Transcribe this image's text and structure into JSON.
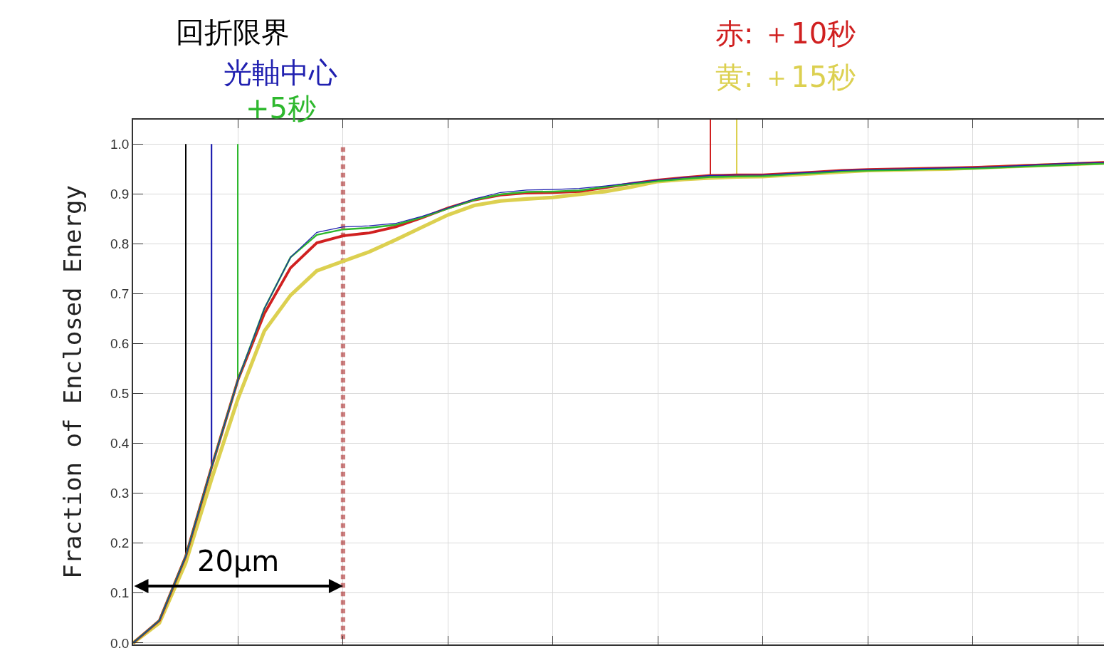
{
  "chart_data": {
    "type": "line",
    "ylabel": "Fraction of Enclosed Energy",
    "categories": [
      null,
      null,
      null,
      null,
      null,
      null,
      null,
      null,
      null,
      null,
      null,
      null,
      null,
      null,
      null,
      null,
      null,
      null,
      null,
      null,
      null,
      null,
      null,
      null,
      null,
      null,
      null,
      null,
      null,
      null,
      null,
      null,
      null,
      null,
      null,
      null,
      null,
      null
    ],
    "series": [
      {
        "name": "回折限界",
        "type": "bar",
        "color": "#000000",
        "values": [
          null,
          null,
          0.827,
          null,
          null,
          null,
          null,
          null,
          null,
          null,
          null,
          null,
          null,
          null,
          null,
          null,
          null,
          null,
          null,
          null,
          null,
          null,
          null,
          null,
          null,
          null,
          null,
          null,
          null,
          null,
          null,
          null,
          null,
          null,
          null,
          null,
          null,
          null
        ],
        "base": [
          null,
          null,
          0.173,
          null,
          null,
          null,
          null,
          null,
          null,
          null,
          null,
          null,
          null,
          null,
          null,
          null,
          null,
          null,
          null,
          null,
          null,
          null,
          null,
          null,
          null,
          null,
          null,
          null,
          null,
          null,
          null,
          null,
          null,
          null,
          null,
          null,
          null,
          null
        ]
      },
      {
        "type": "bar",
        "color": "#2020b0",
        "values": [
          null,
          null,
          null,
          0.646,
          null,
          null,
          null,
          null,
          null,
          null,
          null,
          null,
          null,
          null,
          null,
          null,
          null,
          null,
          null,
          null,
          null,
          null,
          null,
          null,
          null,
          null,
          null,
          null,
          null,
          null,
          null,
          null,
          null,
          null,
          null,
          null,
          null,
          null
        ],
        "base": [
          null,
          null,
          null,
          0.354,
          null,
          null,
          null,
          null,
          null,
          null,
          null,
          null,
          null,
          null,
          null,
          null,
          null,
          null,
          null,
          null,
          null,
          null,
          null,
          null,
          null,
          null,
          null,
          null,
          null,
          null,
          null,
          null,
          null,
          null,
          null,
          null,
          null,
          null
        ]
      },
      {
        "type": "bar",
        "color": "#2eb82e",
        "values": [
          null,
          null,
          null,
          null,
          0.472,
          null,
          null,
          null,
          null,
          null,
          null,
          null,
          null,
          null,
          null,
          null,
          null,
          null,
          null,
          null,
          null,
          null,
          null,
          null,
          null,
          null,
          null,
          null,
          null,
          null,
          null,
          null,
          null,
          null,
          null,
          null,
          null,
          null
        ],
        "base": [
          null,
          null,
          null,
          null,
          0.528,
          null,
          null,
          null,
          null,
          null,
          null,
          null,
          null,
          null,
          null,
          null,
          null,
          null,
          null,
          null,
          null,
          null,
          null,
          null,
          null,
          null,
          null,
          null,
          null,
          null,
          null,
          null,
          null,
          null,
          null,
          null,
          null,
          null
        ]
      },
      {
        "type": "bar",
        "color": "#d02020",
        "values": [
          null,
          null,
          null,
          null,
          null,
          null,
          null,
          null,
          null,
          null,
          null,
          null,
          null,
          null,
          null,
          null,
          null,
          null,
          null,
          null,
          null,
          null,
          0.112,
          null,
          null,
          null,
          null,
          null,
          null,
          null,
          null,
          null,
          null,
          null,
          null,
          null,
          null,
          null
        ],
        "base": [
          null,
          null,
          null,
          null,
          null,
          null,
          null,
          null,
          null,
          null,
          null,
          null,
          null,
          null,
          null,
          null,
          null,
          null,
          null,
          null,
          null,
          null,
          0.937,
          null,
          null,
          null,
          null,
          null,
          null,
          null,
          null,
          null,
          null,
          null,
          null,
          null,
          null,
          null
        ]
      },
      {
        "type": "bar",
        "color": "#dcd050",
        "values": [
          null,
          null,
          null,
          null,
          null,
          null,
          null,
          null,
          null,
          null,
          null,
          null,
          null,
          null,
          null,
          null,
          null,
          null,
          null,
          null,
          null,
          null,
          null,
          0.112,
          null,
          null,
          null,
          null,
          null,
          null,
          null,
          null,
          null,
          null,
          null,
          null,
          null,
          null
        ],
        "base": [
          null,
          null,
          null,
          null,
          null,
          null,
          null,
          null,
          null,
          null,
          null,
          null,
          null,
          null,
          null,
          null,
          null,
          null,
          null,
          null,
          null,
          null,
          null,
          0.937,
          null,
          null,
          null,
          null,
          null,
          null,
          null,
          null,
          null,
          null,
          null,
          null,
          null,
          null
        ]
      },
      {
        "type": "bar",
        "color": "#990000",
        "line_style": "dotted",
        "values": [
          null,
          null,
          null,
          null,
          null,
          null,
          null,
          null,
          1.0,
          null,
          null,
          null,
          null,
          null,
          null,
          null,
          null,
          null,
          null,
          null,
          null,
          null,
          null,
          null,
          null,
          null,
          null,
          null,
          null,
          null,
          null,
          null,
          null,
          null,
          null,
          null,
          null,
          null
        ],
        "base": [
          null,
          null,
          null,
          null,
          null,
          null,
          null,
          null,
          0,
          null,
          null,
          null,
          null,
          null,
          null,
          null,
          null,
          null,
          null,
          null,
          null,
          null,
          null,
          null,
          null,
          null,
          null,
          null,
          null,
          null,
          null,
          null,
          null,
          null,
          null,
          null,
          null,
          null
        ]
      },
      {
        "name": "光軸中心",
        "color": "#2020b0",
        "values": [
          0,
          0.045,
          0.173,
          0.354,
          0.528,
          0.67,
          0.773,
          0.823,
          0.834,
          0.836,
          0.841,
          0.855,
          0.872,
          0.89,
          0.903,
          0.908,
          0.909,
          0.911,
          0.916,
          0.922,
          0.928,
          0.933,
          0.937,
          0.938,
          0.938,
          0.941,
          0.944,
          0.947,
          0.949,
          0.95,
          0.951,
          0.952,
          0.953,
          0.955,
          0.957,
          0.96,
          0.962,
          0.963
        ]
      },
      {
        "name": "+5秒",
        "color": "#2eb82e",
        "values": [
          0,
          0.045,
          0.173,
          0.354,
          0.528,
          0.67,
          0.773,
          0.818,
          0.829,
          0.832,
          0.838,
          0.853,
          0.871,
          0.888,
          0.899,
          0.904,
          0.905,
          0.907,
          0.914,
          0.92,
          0.926,
          0.93,
          0.934,
          0.935,
          0.936,
          0.939,
          0.942,
          0.945,
          0.947,
          0.948,
          0.949,
          0.95,
          0.951,
          0.953,
          0.955,
          0.957,
          0.959,
          0.961
        ]
      },
      {
        "name": "赤: ＋10秒",
        "color": "#d02020",
        "values": [
          0,
          0.045,
          0.173,
          0.354,
          0.528,
          0.66,
          0.752,
          0.802,
          0.816,
          0.822,
          0.834,
          0.852,
          0.872,
          0.888,
          0.898,
          0.902,
          0.903,
          0.905,
          0.913,
          0.921,
          0.928,
          0.933,
          0.937,
          0.938,
          0.938,
          0.941,
          0.944,
          0.947,
          0.949,
          0.95,
          0.951,
          0.952,
          0.953,
          0.955,
          0.957,
          0.959,
          0.961,
          0.963
        ]
      },
      {
        "name": "黄: ＋15秒",
        "color": "#dcd050",
        "values": [
          0,
          0.04,
          0.16,
          0.33,
          0.49,
          0.625,
          0.697,
          0.746,
          0.765,
          0.784,
          0.808,
          0.833,
          0.858,
          0.877,
          0.886,
          0.89,
          0.893,
          0.899,
          0.905,
          0.914,
          0.925,
          0.929,
          0.932,
          0.934,
          0.935,
          0.938,
          0.941,
          0.944,
          0.947,
          0.948,
          0.949,
          0.95,
          0.952,
          0.954,
          0.956,
          0.958,
          0.96,
          0.962
        ]
      }
    ],
    "ylim": [
      -0.003,
      1.049
    ],
    "yticks": [
      {
        "value": 0,
        "label": "0.0"
      },
      {
        "value": 0.1,
        "label": "0.1"
      },
      {
        "value": 0.2,
        "label": "0.2"
      },
      {
        "value": 0.3,
        "label": "0.3"
      },
      {
        "value": 0.4,
        "label": "0.4"
      },
      {
        "value": 0.5,
        "label": "0.5"
      },
      {
        "value": 0.6,
        "label": "0.6"
      },
      {
        "value": 0.7,
        "label": "0.7"
      },
      {
        "value": 0.8,
        "label": "0.8"
      },
      {
        "value": 0.9,
        "label": "0.9"
      },
      {
        "value": 1.0,
        "label": "1.0"
      }
    ],
    "tick_labels": "y",
    "grid": true,
    "annotations": [
      "20µm"
    ]
  }
}
